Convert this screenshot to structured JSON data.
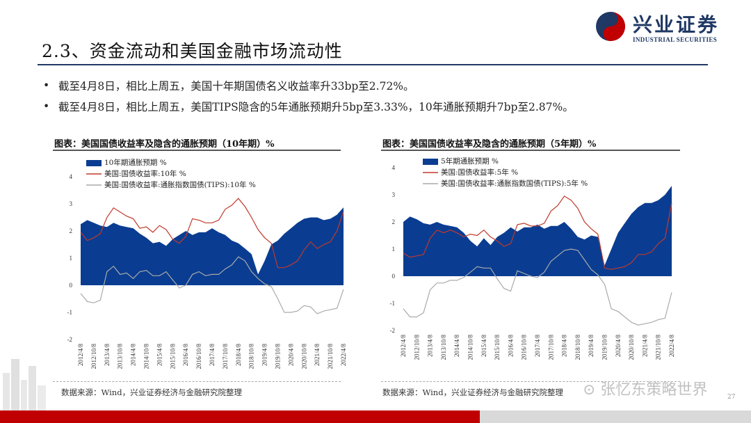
{
  "header": {
    "title": "2.3、资金流动和美国金融市场流动性",
    "logo_cn": "兴业证券",
    "logo_en": "INDUSTRIAL SECURITIES"
  },
  "bullets": [
    "截至4月8日，相比上周五，美国十年期国债名义收益率升33bp至2.72%。",
    "截至4月8日，相比上周五，美国TIPS隐含的5年通胀预期升5bp至3.33%，10年通胀预期升7bp至2.87%。"
  ],
  "colors": {
    "navy": "#0a3d91",
    "red": "#c0392b",
    "gray": "#aaaaaa",
    "footer_red": "#c00000"
  },
  "chart_data": [
    {
      "type": "line",
      "title": "图表：美国国债收益率及隐含的通胀预期（10年期）%",
      "source": "数据来源：Wind，兴业证券经济与金融研究院整理",
      "ylim": [
        -2,
        4
      ],
      "yticks": [
        -2,
        -1,
        0,
        1,
        2,
        3,
        4
      ],
      "xticks": [
        "2012/4/8",
        "2012/10/8",
        "2013/4/8",
        "2013/10/8",
        "2014/4/8",
        "2014/10/8",
        "2015/4/8",
        "2015/10/8",
        "2016/4/8",
        "2016/10/8",
        "2017/4/8",
        "2017/10/8",
        "2018/4/8",
        "2018/10/8",
        "2019/4/8",
        "2019/10/8",
        "2020/4/8",
        "2020/10/8",
        "2021/4/8",
        "2021/10/8",
        "2022/4/8"
      ],
      "series": [
        {
          "name": "10年期通胀预期 %",
          "kind": "area",
          "values": [
            2.25,
            2.4,
            2.3,
            2.2,
            2.15,
            2.3,
            2.2,
            2.15,
            2.1,
            1.9,
            1.75,
            1.55,
            1.6,
            1.45,
            1.7,
            1.85,
            2.0,
            1.85,
            1.95,
            1.95,
            2.1,
            1.95,
            1.85,
            1.65,
            1.55,
            1.35,
            1.15,
            0.4,
            0.9,
            1.5,
            1.65,
            1.9,
            2.1,
            2.3,
            2.45,
            2.5,
            2.5,
            2.4,
            2.45,
            2.6,
            2.87
          ]
        },
        {
          "name": "美国:国债收益率:10年 %",
          "kind": "line",
          "values": [
            1.95,
            1.65,
            1.75,
            1.9,
            2.5,
            2.85,
            2.7,
            2.55,
            2.45,
            2.1,
            2.15,
            1.95,
            2.2,
            2.05,
            1.7,
            1.55,
            1.8,
            2.45,
            2.4,
            2.3,
            2.3,
            2.4,
            2.8,
            2.95,
            3.2,
            2.9,
            2.5,
            2.05,
            1.75,
            1.55,
            0.65,
            0.65,
            0.75,
            0.9,
            1.3,
            1.6,
            1.35,
            1.5,
            1.6,
            2.0,
            2.72
          ]
        },
        {
          "name": "美国:国债收益率:通胀指数国债(TIPS):10年 %",
          "kind": "line",
          "values": [
            -0.3,
            -0.6,
            -0.65,
            -0.55,
            0.5,
            0.7,
            0.4,
            0.45,
            0.25,
            0.5,
            0.55,
            0.35,
            0.35,
            0.5,
            0.2,
            -0.1,
            0.0,
            0.4,
            0.5,
            0.35,
            0.4,
            0.4,
            0.6,
            0.75,
            1.05,
            0.9,
            0.5,
            0.25,
            0.05,
            -0.05,
            -0.5,
            -1.0,
            -1.0,
            -0.95,
            -0.75,
            -0.8,
            -1.05,
            -0.95,
            -0.9,
            -0.85,
            -0.15
          ]
        }
      ]
    },
    {
      "type": "line",
      "title": "图表：美国国债收益率及隐含的通胀预期（5年期）%",
      "source": "数据来源：Wind，兴业证券经济与金融研究院整理",
      "ylim": [
        -2,
        4
      ],
      "yticks": [
        -2,
        -1,
        0,
        1,
        2,
        3,
        4
      ],
      "xticks": [
        "2012/4/8",
        "2012/10/8",
        "2013/4/8",
        "2013/10/8",
        "2014/4/8",
        "2014/10/8",
        "2015/4/8",
        "2015/10/8",
        "2016/4/8",
        "2016/10/8",
        "2017/4/8",
        "2017/10/8",
        "2018/4/8",
        "2018/10/8",
        "2019/4/8",
        "2019/10/8",
        "2020/4/8",
        "2020/10/8",
        "2021/4/8",
        "2021/10/8",
        "2022/4/8"
      ],
      "series": [
        {
          "name": "5年期通胀预期 %",
          "kind": "area",
          "values": [
            2.0,
            2.2,
            2.1,
            1.95,
            1.9,
            2.0,
            1.9,
            1.85,
            1.8,
            1.6,
            1.3,
            1.1,
            1.4,
            1.15,
            1.45,
            1.6,
            1.8,
            1.65,
            1.8,
            1.8,
            1.9,
            1.75,
            1.85,
            1.85,
            2.0,
            1.75,
            1.45,
            1.35,
            1.5,
            1.45,
            0.4,
            1.0,
            1.6,
            1.95,
            2.3,
            2.55,
            2.7,
            2.7,
            2.8,
            3.0,
            3.33
          ]
        },
        {
          "name": "美国:国债收益率:5年 %",
          "kind": "line",
          "values": [
            0.85,
            0.7,
            0.75,
            0.8,
            1.4,
            1.7,
            1.6,
            1.7,
            1.6,
            1.45,
            1.55,
            1.5,
            1.7,
            1.45,
            1.3,
            1.1,
            1.2,
            1.9,
            1.95,
            1.85,
            1.85,
            1.95,
            2.4,
            2.6,
            2.95,
            2.8,
            2.5,
            2.0,
            1.75,
            1.55,
            0.3,
            0.25,
            0.3,
            0.35,
            0.5,
            0.8,
            0.8,
            0.9,
            1.2,
            1.4,
            2.7
          ]
        },
        {
          "name": "美国:国债收益率:通胀指数国债(TIPS):5年 %",
          "kind": "line",
          "values": [
            -1.2,
            -1.5,
            -1.5,
            -1.35,
            -0.5,
            -0.25,
            -0.25,
            -0.15,
            -0.15,
            -0.05,
            0.15,
            0.35,
            0.3,
            0.3,
            -0.1,
            -0.45,
            -0.55,
            0.2,
            0.1,
            0.0,
            -0.05,
            0.15,
            0.55,
            0.75,
            0.95,
            1.0,
            0.95,
            0.6,
            0.25,
            0.05,
            -0.3,
            -1.2,
            -1.3,
            -1.5,
            -1.7,
            -1.8,
            -1.75,
            -1.7,
            -1.6,
            -1.55,
            -0.6
          ]
        }
      ]
    }
  ]
}
